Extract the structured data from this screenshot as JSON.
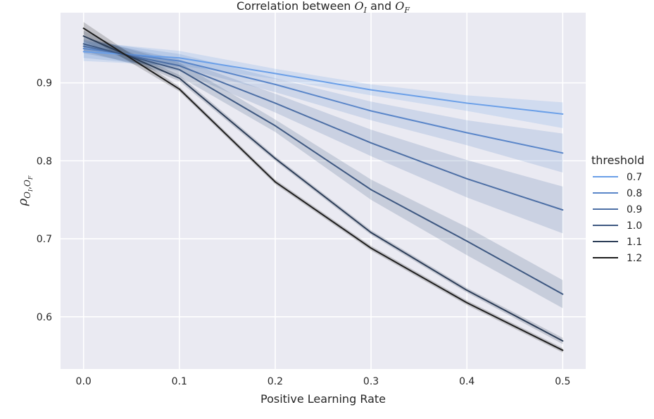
{
  "chart_data": {
    "type": "line",
    "title": {
      "prefix": "Correlation between ",
      "var1_base": "O",
      "var1_sub": "I",
      "middle": " and ",
      "var2_base": "O",
      "var2_sub": "F"
    },
    "xlabel": "Positive Learning Rate",
    "ylabel": {
      "base": "ρ",
      "sub1_base": "O",
      "sub1_sub": "I",
      "sep": ",",
      "sub2_base": "O",
      "sub2_sub": "F"
    },
    "x": [
      0.0,
      0.1,
      0.2,
      0.3,
      0.4,
      0.5
    ],
    "xlim": [
      -0.024,
      0.524
    ],
    "ylim": [
      0.533,
      0.99
    ],
    "xticks": [
      0.0,
      0.1,
      0.2,
      0.3,
      0.4,
      0.5
    ],
    "xtick_labels": [
      "0.0",
      "0.1",
      "0.2",
      "0.3",
      "0.4",
      "0.5"
    ],
    "yticks": [
      0.6,
      0.7,
      0.8,
      0.9
    ],
    "ytick_labels": [
      "0.6",
      "0.7",
      "0.8",
      "0.9"
    ],
    "grid": true,
    "legend": {
      "title": "threshold",
      "placement": "right"
    },
    "series": [
      {
        "name": "0.7",
        "color": "#6a9fe8",
        "values": [
          0.94,
          0.932,
          0.912,
          0.891,
          0.874,
          0.86
        ],
        "ci_low": [
          0.928,
          0.922,
          0.905,
          0.884,
          0.864,
          0.842
        ],
        "ci_high": [
          0.953,
          0.941,
          0.918,
          0.898,
          0.884,
          0.875
        ]
      },
      {
        "name": "0.8",
        "color": "#5a86c9",
        "values": [
          0.944,
          0.928,
          0.898,
          0.864,
          0.836,
          0.81
        ],
        "ci_low": [
          0.932,
          0.92,
          0.888,
          0.852,
          0.82,
          0.785
        ],
        "ci_high": [
          0.955,
          0.937,
          0.906,
          0.876,
          0.852,
          0.835
        ]
      },
      {
        "name": "0.9",
        "color": "#4d6fa5",
        "values": [
          0.947,
          0.922,
          0.874,
          0.823,
          0.777,
          0.737
        ],
        "ci_low": [
          0.938,
          0.915,
          0.862,
          0.806,
          0.753,
          0.707
        ],
        "ci_high": [
          0.957,
          0.93,
          0.886,
          0.84,
          0.801,
          0.767
        ]
      },
      {
        "name": "1.0",
        "color": "#3e5881",
        "values": [
          0.95,
          0.917,
          0.845,
          0.763,
          0.697,
          0.629
        ],
        "ci_low": [
          0.941,
          0.908,
          0.837,
          0.75,
          0.679,
          0.611
        ],
        "ci_high": [
          0.959,
          0.926,
          0.853,
          0.776,
          0.715,
          0.647
        ]
      },
      {
        "name": "1.1",
        "color": "#2c3d57",
        "values": [
          0.96,
          0.906,
          0.803,
          0.708,
          0.634,
          0.569
        ],
        "ci_low": [
          0.953,
          0.902,
          0.8,
          0.705,
          0.631,
          0.565
        ],
        "ci_high": [
          0.967,
          0.91,
          0.806,
          0.711,
          0.637,
          0.573
        ]
      },
      {
        "name": "1.2",
        "color": "#1e1e1e",
        "values": [
          0.97,
          0.892,
          0.773,
          0.688,
          0.618,
          0.557
        ],
        "ci_low": [
          0.962,
          0.889,
          0.77,
          0.685,
          0.615,
          0.554
        ],
        "ci_high": [
          0.978,
          0.895,
          0.776,
          0.691,
          0.621,
          0.56
        ]
      }
    ]
  }
}
